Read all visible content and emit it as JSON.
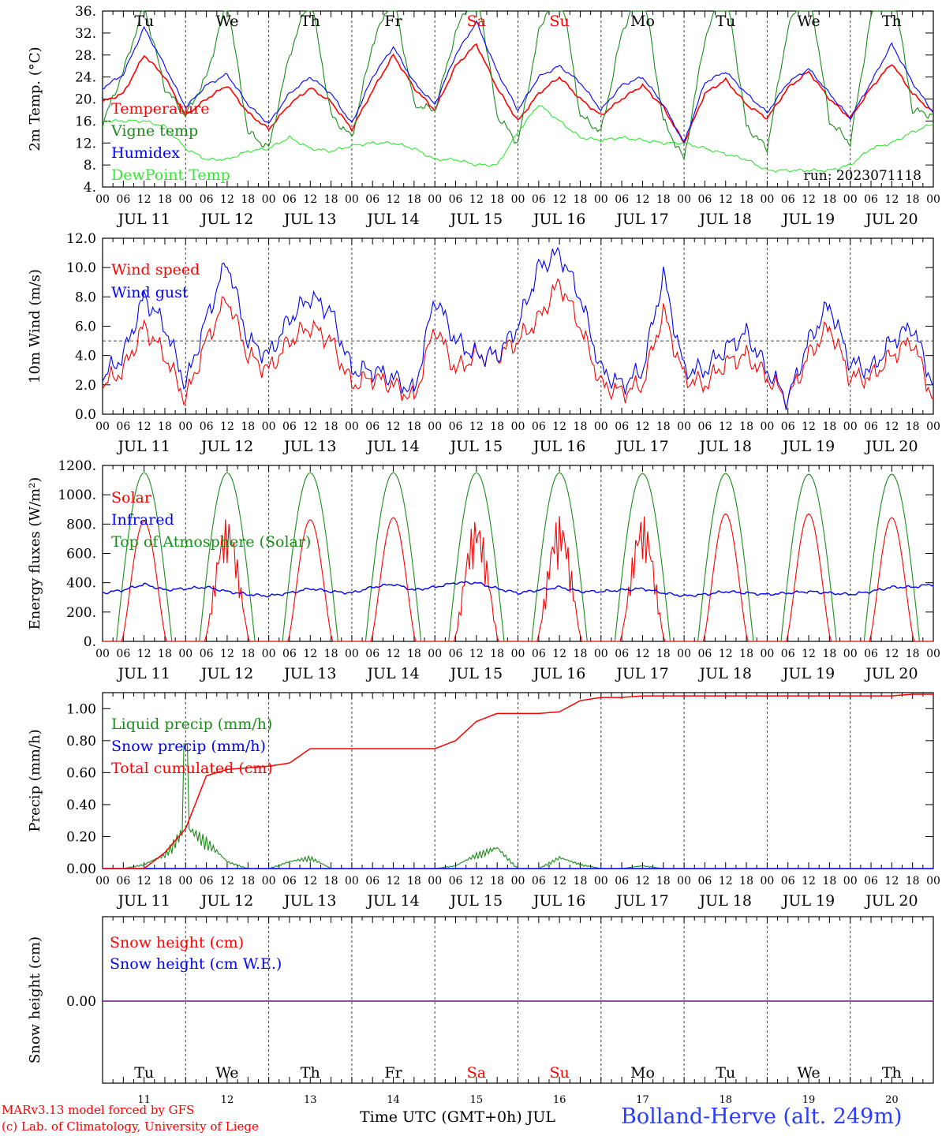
{
  "meta": {
    "run_label": "run: 2023071118",
    "credit_line1": "MARv3.13 model forced by GFS",
    "credit_line2": "(c) Lab. of Climatology, University of Liege",
    "xaxis_title": "Time UTC (GMT+0h) JUL",
    "station": "Bolland-Herve (alt. 249m)"
  },
  "colors": {
    "red": "#ff0000",
    "green": "#1a8c1a",
    "blue": "#0000ff",
    "lightgreen": "#33e633",
    "purple": "#7b2fa8",
    "grid": "#555555",
    "station": "#2a3cff"
  },
  "chart_data": [
    {
      "type": "line",
      "ylabel": "2m Temp. (°C)",
      "ylim": [
        4,
        36
      ],
      "y_ticks": [
        "4.",
        "8.",
        "12.",
        "16.",
        "20.",
        "24.",
        "28.",
        "32.",
        "36."
      ],
      "x_hours": [
        0,
        6,
        12,
        18,
        24,
        30,
        36,
        42,
        48,
        54,
        60,
        66,
        72,
        78,
        84,
        90,
        96,
        102,
        108,
        114,
        120,
        126,
        132,
        138,
        144,
        150,
        156,
        162,
        168,
        174,
        180,
        186,
        192,
        198,
        204,
        210,
        216,
        222,
        228,
        234,
        240
      ],
      "weekdays": [
        {
          "label": "Tu",
          "color": "#000000"
        },
        {
          "label": "We",
          "color": "#000000"
        },
        {
          "label": "Th",
          "color": "#000000"
        },
        {
          "label": "Fr",
          "color": "#000000"
        },
        {
          "label": "Sa",
          "color": "#ff0000"
        },
        {
          "label": "Su",
          "color": "#ff0000"
        },
        {
          "label": "Mo",
          "color": "#000000"
        },
        {
          "label": "Tu",
          "color": "#000000"
        },
        {
          "label": "We",
          "color": "#000000"
        },
        {
          "label": "Th",
          "color": "#000000"
        }
      ],
      "hour_tick_labels": [
        "00",
        "06",
        "12",
        "18"
      ],
      "day_labels": [
        "JUL 11",
        "JUL 12",
        "JUL 13",
        "JUL 14",
        "JUL 15",
        "JUL 16",
        "JUL 17",
        "JUL 18",
        "JUL 19",
        "JUL 20"
      ],
      "series": [
        {
          "name": "Temperature",
          "color": "#ff0000",
          "y": [
            19.5,
            21,
            28,
            24,
            17,
            20,
            22.5,
            17.5,
            14.5,
            19,
            22,
            19.5,
            14.5,
            21.5,
            28,
            22,
            18,
            26,
            30,
            22,
            16,
            21,
            24,
            20,
            17,
            20,
            22.5,
            18.5,
            12,
            21,
            23.5,
            19,
            16.5,
            22,
            25,
            20,
            16.5,
            22,
            26.5,
            21,
            17.5
          ]
        },
        {
          "name": "Vigne temp",
          "color": "#1a8c1a",
          "y": [
            15.5,
            25,
            37,
            22,
            17,
            24,
            38,
            14,
            11,
            28,
            39,
            17,
            13,
            30,
            39,
            19,
            18,
            32,
            41,
            17,
            12,
            32,
            42,
            17,
            14,
            32,
            41,
            16,
            9,
            31,
            41,
            15,
            11,
            33,
            41,
            16,
            12,
            35,
            42,
            18,
            17
          ]
        },
        {
          "name": "Humidex",
          "color": "#0000ff",
          "y": [
            22,
            24.5,
            33,
            26,
            18.5,
            22.5,
            24.5,
            19,
            15.5,
            21,
            24,
            21,
            15.5,
            24,
            29.5,
            23,
            19,
            28,
            34,
            25,
            18,
            24,
            26,
            23,
            18,
            22.5,
            24,
            19,
            12,
            23,
            25,
            21,
            17.5,
            23,
            25.5,
            21,
            16.5,
            23,
            30,
            23,
            17.5
          ]
        },
        {
          "name": "DewPoint Temp",
          "color": "#33e633",
          "y": [
            16,
            16,
            16,
            15,
            11,
            9,
            9,
            10.5,
            11,
            13,
            11,
            10.5,
            11.5,
            12,
            12,
            11,
            9,
            9,
            8,
            8,
            14,
            19,
            16,
            13,
            12.5,
            13,
            12.5,
            12,
            12,
            11,
            10,
            9,
            7,
            7,
            7,
            7,
            8,
            11,
            12,
            14,
            15.5
          ]
        }
      ],
      "run_label": "run: 2023071118"
    },
    {
      "type": "line",
      "ylabel": "10m Wind (m/s)",
      "ylim": [
        0,
        12
      ],
      "y_ticks": [
        "0.0",
        "2.0",
        "4.0",
        "6.0",
        "8.0",
        "10.0",
        "12.0"
      ],
      "reference_y": 5,
      "series": [
        {
          "name": "Wind speed",
          "color": "#ff0000",
          "y": [
            2,
            3,
            6,
            4,
            1,
            5,
            8,
            4,
            3,
            5,
            6,
            5,
            2,
            2.5,
            2,
            1,
            6,
            3,
            4,
            4,
            5,
            6.5,
            9,
            6,
            2,
            1.5,
            2,
            7,
            2.5,
            2,
            3.5,
            4,
            2.5,
            1,
            4,
            6,
            2.5,
            2.5,
            4,
            5,
            1
          ]
        },
        {
          "name": "Wind gust",
          "color": "#0000ff",
          "y": [
            2.5,
            4,
            8,
            6,
            2,
            6.5,
            10.5,
            5,
            4,
            6.5,
            8,
            7,
            3,
            3,
            2.5,
            1.5,
            8,
            5,
            4,
            4,
            6,
            10,
            11,
            8,
            3,
            2,
            3,
            9.5,
            3,
            3,
            4.5,
            5.5,
            3,
            1,
            5,
            7.5,
            3.5,
            3,
            5,
            6,
            2
          ]
        }
      ]
    },
    {
      "type": "line",
      "ylabel": "Energy fluxes (W/m²)",
      "ylim": [
        0,
        1200
      ],
      "y_ticks": [
        "0.",
        "200.",
        "400.",
        "600.",
        "800.",
        "1000.",
        "1200."
      ],
      "series": [
        {
          "name": "Solar",
          "color": "#ff0000",
          "daily_peak": [
            820,
            840,
            830,
            845,
            845,
            860,
            860,
            870,
            870,
            845
          ]
        },
        {
          "name": "Infrared",
          "color": "#0000ff",
          "y": [
            330,
            350,
            390,
            350,
            360,
            370,
            340,
            320,
            310,
            330,
            360,
            340,
            330,
            370,
            390,
            350,
            370,
            400,
            400,
            360,
            330,
            350,
            370,
            340,
            340,
            350,
            360,
            330,
            310,
            320,
            340,
            330,
            320,
            330,
            340,
            330,
            320,
            340,
            370,
            370,
            390
          ]
        },
        {
          "name": "Top of Atmosphere (Solar)",
          "color": "#1a8c1a",
          "daily_peak": [
            1150,
            1150,
            1150,
            1150,
            1150,
            1150,
            1145,
            1145,
            1140,
            1140
          ]
        }
      ]
    },
    {
      "type": "line",
      "ylabel": "Precip (mm/h)",
      "ylim": [
        0,
        1.1
      ],
      "y_ticks": [
        "0.00",
        "0.20",
        "0.40",
        "0.60",
        "0.80",
        "1.00"
      ],
      "series": [
        {
          "name": "Liquid precip (mm/h)",
          "color": "#1a8c1a",
          "y": [
            0,
            0,
            0.03,
            0.1,
            0.3,
            0.2,
            0.05,
            0,
            0,
            0.05,
            0.08,
            0,
            0,
            0,
            0,
            0,
            0,
            0.02,
            0.1,
            0.15,
            0,
            0,
            0.08,
            0.03,
            0,
            0,
            0.02,
            0,
            0,
            0,
            0,
            0,
            0,
            0,
            0,
            0,
            0,
            0,
            0,
            0,
            0
          ]
        },
        {
          "name": "Snow precip (mm/h)",
          "color": "#0000ff",
          "y": [
            0,
            0,
            0,
            0,
            0,
            0,
            0,
            0,
            0,
            0,
            0,
            0,
            0,
            0,
            0,
            0,
            0,
            0,
            0,
            0,
            0,
            0,
            0,
            0,
            0,
            0,
            0,
            0,
            0,
            0,
            0,
            0,
            0,
            0,
            0,
            0,
            0,
            0,
            0,
            0,
            0
          ]
        },
        {
          "name": "Total cumulated (cm)",
          "color": "#ff0000",
          "y": [
            0,
            0,
            0,
            0.1,
            0.25,
            0.58,
            0.62,
            0.63,
            0.64,
            0.66,
            0.75,
            0.75,
            0.75,
            0.75,
            0.75,
            0.75,
            0.75,
            0.8,
            0.92,
            0.97,
            0.97,
            0.97,
            0.98,
            1.05,
            1.07,
            1.07,
            1.08,
            1.08,
            1.08,
            1.08,
            1.08,
            1.08,
            1.08,
            1.08,
            1.08,
            1.08,
            1.08,
            1.08,
            1.08,
            1.09,
            1.09
          ]
        }
      ]
    },
    {
      "type": "line",
      "ylabel": "Snow height (cm)",
      "y_ticks": [
        "0.00"
      ],
      "date_numbers": [
        "11",
        "12",
        "13",
        "14",
        "15",
        "16",
        "17",
        "18",
        "19",
        "20"
      ],
      "series": [
        {
          "name": "Snow height (cm)",
          "color": "#ff0000",
          "y": [
            0,
            0
          ]
        },
        {
          "name": "Snow height (cm W.E.)",
          "color": "#0000ff",
          "y": [
            0,
            0
          ]
        }
      ]
    }
  ]
}
